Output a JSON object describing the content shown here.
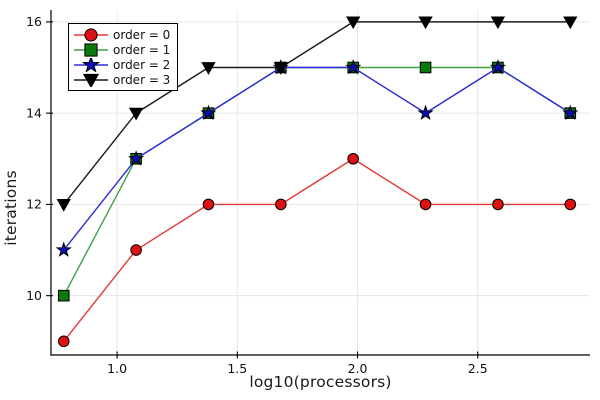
{
  "chart_data": {
    "type": "line",
    "title": "",
    "xlabel": "log10(processors)",
    "ylabel": "iterations",
    "x": [
      0.778,
      1.079,
      1.38,
      1.681,
      1.982,
      2.283,
      2.584,
      2.885
    ],
    "series": [
      {
        "name": "order = 0",
        "marker": "circle",
        "line_color": "#e53935",
        "marker_color": "#dd1111",
        "values": [
          9,
          11,
          12,
          12,
          13,
          12,
          12,
          12
        ]
      },
      {
        "name": "order = 1",
        "marker": "square",
        "line_color": "#43a047",
        "marker_color": "#0b7a0b",
        "values": [
          10,
          13,
          14,
          15,
          15,
          15,
          15,
          14
        ]
      },
      {
        "name": "order = 2",
        "marker": "star",
        "line_color": "#2b2bdb",
        "marker_color": "#0d0dbb",
        "values": [
          11,
          13,
          14,
          15,
          15,
          14,
          15,
          14
        ]
      },
      {
        "name": "order = 3",
        "marker": "triangle-down",
        "line_color": "#1a1a1a",
        "marker_color": "#000000",
        "values": [
          12,
          14,
          15,
          15,
          16,
          16,
          16,
          16
        ]
      }
    ],
    "xticks": {
      "values": [
        1.0,
        1.5,
        2.0,
        2.5
      ],
      "labels": [
        "1.0",
        "1.5",
        "2.0",
        "2.5"
      ]
    },
    "yticks": {
      "values": [
        10,
        12,
        14,
        16
      ],
      "labels": [
        "10",
        "12",
        "14",
        "16"
      ]
    },
    "xlim": [
      0.725,
      2.967
    ],
    "ylim": [
      8.7,
      16.26
    ],
    "grid": true,
    "grid_color": "#e7e7e7",
    "axis_color": "#000000",
    "tick_label_color": "#111111",
    "marker_stroke_color": "#000000",
    "background": "#ffffff",
    "legend": {
      "position": "top-left",
      "border_color": "#000000",
      "background": "#ffffff"
    }
  }
}
